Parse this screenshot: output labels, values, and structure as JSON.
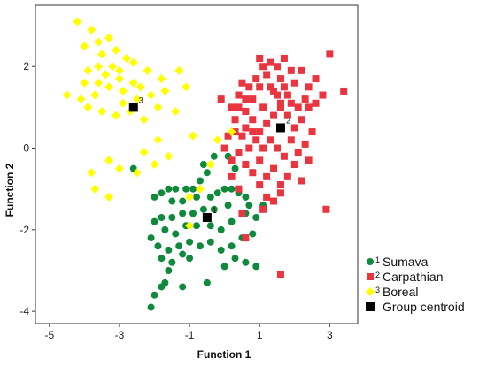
{
  "chart_data": {
    "type": "scatter",
    "xlabel": "Function 1",
    "ylabel": "Function 2",
    "xlim": [
      -5.4,
      3.8
    ],
    "ylim": [
      -4.3,
      3.5
    ],
    "xticks": [
      -5,
      -3,
      -1,
      1,
      3
    ],
    "yticks": [
      2,
      0,
      -2,
      -4
    ],
    "grid": false,
    "legend_position": "bottom-right",
    "series": [
      {
        "name": "Sumava",
        "number": "1",
        "color": "#0f8a3c",
        "marker": "circle",
        "points": [
          [
            -0.6,
            -0.4
          ],
          [
            -0.5,
            -0.6
          ],
          [
            -0.7,
            -0.8
          ],
          [
            -0.9,
            -1.0
          ],
          [
            -1.1,
            -1.0
          ],
          [
            -1.4,
            -1.0
          ],
          [
            -1.6,
            -1.0
          ],
          [
            -1.8,
            -1.1
          ],
          [
            -2.0,
            -1.2
          ],
          [
            -1.5,
            -1.3
          ],
          [
            -1.2,
            -1.3
          ],
          [
            -0.8,
            -1.2
          ],
          [
            -0.4,
            -1.2
          ],
          [
            -0.2,
            -1.1
          ],
          [
            0.0,
            -1.0
          ],
          [
            0.2,
            -1.0
          ],
          [
            0.4,
            -1.1
          ],
          [
            0.6,
            -1.2
          ],
          [
            0.1,
            -1.4
          ],
          [
            -0.3,
            -1.5
          ],
          [
            -0.6,
            -1.5
          ],
          [
            -0.9,
            -1.6
          ],
          [
            -1.2,
            -1.6
          ],
          [
            -1.5,
            -1.7
          ],
          [
            -1.8,
            -1.7
          ],
          [
            -2.0,
            -1.8
          ],
          [
            -1.7,
            -2.0
          ],
          [
            -1.4,
            -2.1
          ],
          [
            -1.1,
            -1.9
          ],
          [
            -0.8,
            -1.9
          ],
          [
            -0.4,
            -1.9
          ],
          [
            -0.1,
            -2.0
          ],
          [
            0.2,
            -1.8
          ],
          [
            0.5,
            -1.6
          ],
          [
            0.7,
            -1.4
          ],
          [
            0.9,
            -1.7
          ],
          [
            0.8,
            -2.1
          ],
          [
            0.5,
            -2.2
          ],
          [
            0.2,
            -2.4
          ],
          [
            -0.1,
            -2.5
          ],
          [
            -0.4,
            -2.3
          ],
          [
            -0.7,
            -2.4
          ],
          [
            -1.0,
            -2.3
          ],
          [
            -1.3,
            -2.4
          ],
          [
            -1.6,
            -2.5
          ],
          [
            -1.9,
            -2.4
          ],
          [
            -2.1,
            -2.2
          ],
          [
            -1.8,
            -2.7
          ],
          [
            -1.5,
            -2.8
          ],
          [
            -1.2,
            -2.6
          ],
          [
            -1.0,
            -2.7
          ],
          [
            0.3,
            -2.7
          ],
          [
            0.6,
            -2.8
          ],
          [
            0.9,
            -2.9
          ],
          [
            0.0,
            -2.9
          ],
          [
            -1.6,
            -3.0
          ],
          [
            -1.7,
            -3.3
          ],
          [
            -1.2,
            -3.4
          ],
          [
            -0.5,
            -3.3
          ],
          [
            -2.0,
            -3.6
          ],
          [
            -1.8,
            -3.4
          ],
          [
            -2.1,
            -3.9
          ],
          [
            -2.6,
            -0.5
          ],
          [
            -0.3,
            -0.2
          ],
          [
            0.1,
            -0.2
          ],
          [
            0.3,
            -0.5
          ],
          [
            1.1,
            -1.4
          ],
          [
            0.6,
            -1.6
          ]
        ]
      },
      {
        "name": "Carpathian",
        "number": "2",
        "color": "#e8353f",
        "marker": "square",
        "points": [
          [
            -0.1,
            1.2
          ],
          [
            0.2,
            1.0
          ],
          [
            0.4,
            1.3
          ],
          [
            0.6,
            0.9
          ],
          [
            0.8,
            1.2
          ],
          [
            1.0,
            1.5
          ],
          [
            1.2,
            1.8
          ],
          [
            1.4,
            1.4
          ],
          [
            1.6,
            1.7
          ],
          [
            1.8,
            1.3
          ],
          [
            2.0,
            1.6
          ],
          [
            2.2,
            1.9
          ],
          [
            2.4,
            1.5
          ],
          [
            2.6,
            1.7
          ],
          [
            1.1,
            2.0
          ],
          [
            1.3,
            2.1
          ],
          [
            1.5,
            2.0
          ],
          [
            1.7,
            2.2
          ],
          [
            1.9,
            1.9
          ],
          [
            0.9,
            1.7
          ],
          [
            0.7,
            1.5
          ],
          [
            0.5,
            1.6
          ],
          [
            0.3,
            0.7
          ],
          [
            0.6,
            0.5
          ],
          [
            0.8,
            0.7
          ],
          [
            1.0,
            0.4
          ],
          [
            1.2,
            0.6
          ],
          [
            1.4,
            0.8
          ],
          [
            1.6,
            1.0
          ],
          [
            1.8,
            0.8
          ],
          [
            2.0,
            0.5
          ],
          [
            2.2,
            0.7
          ],
          [
            2.4,
            1.0
          ],
          [
            2.6,
            1.1
          ],
          [
            2.8,
            1.3
          ],
          [
            3.0,
            2.3
          ],
          [
            3.4,
            1.4
          ],
          [
            2.5,
            0.4
          ],
          [
            2.3,
            0.1
          ],
          [
            2.1,
            -0.1
          ],
          [
            1.9,
            0.2
          ],
          [
            1.7,
            -0.2
          ],
          [
            1.5,
            0.0
          ],
          [
            1.3,
            0.2
          ],
          [
            1.1,
            0.0
          ],
          [
            0.9,
            0.2
          ],
          [
            0.7,
            0.0
          ],
          [
            0.5,
            0.3
          ],
          [
            0.3,
            0.4
          ],
          [
            0.1,
            0.3
          ],
          [
            0.0,
            0.0
          ],
          [
            0.2,
            -0.3
          ],
          [
            0.4,
            -0.1
          ],
          [
            0.6,
            -0.4
          ],
          [
            0.8,
            -0.6
          ],
          [
            1.0,
            -0.3
          ],
          [
            1.2,
            -0.7
          ],
          [
            1.4,
            -0.5
          ],
          [
            1.6,
            -0.9
          ],
          [
            1.8,
            -0.7
          ],
          [
            2.0,
            -0.4
          ],
          [
            2.2,
            -0.8
          ],
          [
            2.4,
            -0.3
          ],
          [
            1.0,
            -0.9
          ],
          [
            1.2,
            -1.2
          ],
          [
            1.4,
            -1.3
          ],
          [
            1.6,
            -1.1
          ],
          [
            1.1,
            -1.5
          ],
          [
            0.5,
            -1.6
          ],
          [
            0.2,
            -0.7
          ],
          [
            0.4,
            -1.0
          ],
          [
            0.6,
            -2.2
          ],
          [
            2.9,
            -1.5
          ],
          [
            1.6,
            -3.1
          ],
          [
            1.0,
            2.2
          ],
          [
            1.6,
            1.1
          ],
          [
            1.9,
            1.1
          ],
          [
            0.4,
            1.0
          ],
          [
            0.6,
            1.2
          ],
          [
            2.3,
            1.2
          ],
          [
            2.1,
            1.0
          ],
          [
            1.3,
            1.5
          ],
          [
            1.5,
            1.3
          ],
          [
            1.7,
            1.5
          ],
          [
            0.8,
            0.4
          ],
          [
            1.1,
            1.0
          ]
        ]
      },
      {
        "name": "Boreal",
        "number": "3",
        "color": "#ffff00",
        "marker": "diamond",
        "points": [
          [
            -4.2,
            3.1
          ],
          [
            -3.8,
            2.9
          ],
          [
            -3.6,
            2.6
          ],
          [
            -3.3,
            2.7
          ],
          [
            -4.0,
            2.5
          ],
          [
            -3.5,
            2.3
          ],
          [
            -3.1,
            2.4
          ],
          [
            -2.8,
            2.2
          ],
          [
            -3.2,
            2.0
          ],
          [
            -3.6,
            2.0
          ],
          [
            -3.9,
            1.9
          ],
          [
            -3.4,
            1.8
          ],
          [
            -3.0,
            1.7
          ],
          [
            -2.6,
            1.6
          ],
          [
            -2.2,
            1.9
          ],
          [
            -1.8,
            1.7
          ],
          [
            -1.3,
            1.9
          ],
          [
            -1.7,
            1.4
          ],
          [
            -2.1,
            1.3
          ],
          [
            -2.5,
            1.2
          ],
          [
            -2.9,
            1.4
          ],
          [
            -3.3,
            1.5
          ],
          [
            -3.7,
            1.3
          ],
          [
            -4.1,
            1.2
          ],
          [
            -4.5,
            1.3
          ],
          [
            -3.9,
            1.0
          ],
          [
            -3.5,
            0.9
          ],
          [
            -3.1,
            0.8
          ],
          [
            -2.7,
            0.9
          ],
          [
            -2.3,
            0.7
          ],
          [
            -1.9,
            1.0
          ],
          [
            -1.4,
            0.9
          ],
          [
            -1.1,
            1.5
          ],
          [
            -0.9,
            0.3
          ],
          [
            -1.9,
            0.2
          ],
          [
            -2.3,
            -0.1
          ],
          [
            -2.0,
            -0.4
          ],
          [
            -2.5,
            -0.6
          ],
          [
            -3.0,
            -0.5
          ],
          [
            -3.3,
            -0.3
          ],
          [
            -3.8,
            -0.6
          ],
          [
            -3.7,
            -1.0
          ],
          [
            -3.3,
            -1.2
          ],
          [
            -0.2,
            0.2
          ],
          [
            0.2,
            0.4
          ],
          [
            -0.4,
            -0.4
          ],
          [
            -1.0,
            -1.2
          ],
          [
            -2.9,
            1.1
          ],
          [
            -3.6,
            1.6
          ],
          [
            -2.4,
            1.5
          ],
          [
            -0.7,
            -1.0
          ],
          [
            -1.0,
            -1.9
          ],
          [
            -1.6,
            -0.2
          ],
          [
            -3.0,
            1.9
          ],
          [
            -2.6,
            2.1
          ],
          [
            -4.0,
            1.6
          ]
        ]
      }
    ],
    "centroids": [
      {
        "label": "1",
        "x": -0.5,
        "y": -1.7
      },
      {
        "label": "2",
        "x": 1.6,
        "y": 0.5
      },
      {
        "label": "3",
        "x": -2.6,
        "y": 1.0
      }
    ],
    "centroid_legend": "Group centroid",
    "centroid_color": "#000000"
  }
}
